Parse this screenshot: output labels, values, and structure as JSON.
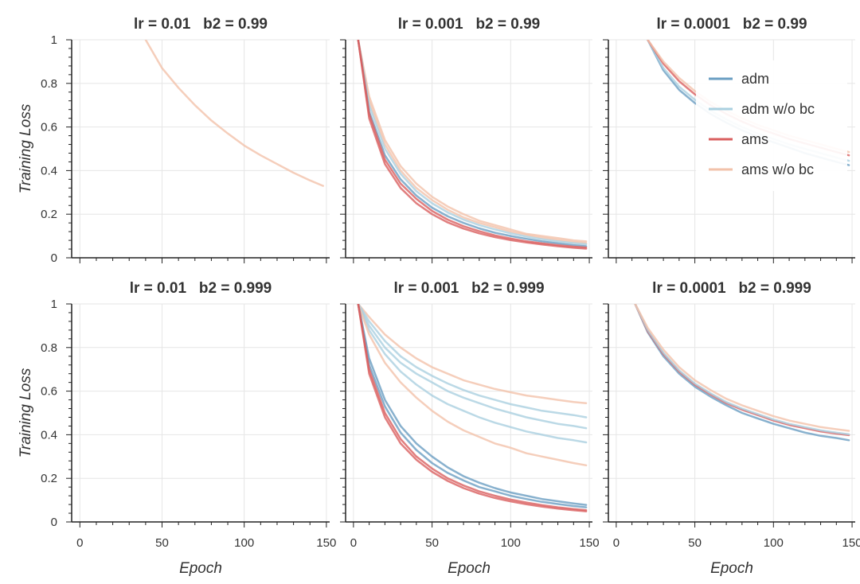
{
  "chart_data": {
    "type": "line",
    "legend": {
      "placement": "top-right",
      "entries": [
        {
          "label": "adm",
          "color": "#6a9ec2",
          "opacity": 1.0
        },
        {
          "label": "adm w/o bc",
          "color": "#aad0e0",
          "opacity": 1.0
        },
        {
          "label": "ams",
          "color": "#d95f5f",
          "opacity": 1.0
        },
        {
          "label": "ams w/o bc",
          "color": "#f2c2aa",
          "opacity": 1.0
        }
      ]
    },
    "axes": {
      "xlabel": "Epoch",
      "ylabel": "Training Loss",
      "xlim": [
        -5,
        152
      ],
      "ylim": [
        0,
        1
      ],
      "xticks": [
        0,
        50,
        100,
        150
      ],
      "yticks": [
        0,
        0.2,
        0.4,
        0.6,
        0.8,
        1
      ],
      "ytick_labels": [
        "0",
        "0.2",
        "0.4",
        "0.6",
        "0.8",
        "1"
      ],
      "grid": true
    },
    "panels": [
      {
        "title": "lr = 0.01   b2 = 0.99",
        "series": [
          {
            "class": "ams w/o bc",
            "x": [
              40,
              50,
              60,
              70,
              80,
              90,
              100,
              110,
              120,
              130,
              140,
              148
            ],
            "y": [
              1.0,
              0.87,
              0.78,
              0.7,
              0.63,
              0.57,
              0.515,
              0.47,
              0.43,
              0.39,
              0.355,
              0.33
            ]
          }
        ]
      },
      {
        "title": "lr = 0.001   b2 = 0.99",
        "series": [
          {
            "class": "ams w/o bc",
            "x": [
              3,
              10,
              20,
              30,
              40,
              50,
              60,
              70,
              80,
              90,
              100,
              110,
              120,
              130,
              140,
              148
            ],
            "y": [
              1.0,
              0.74,
              0.54,
              0.42,
              0.34,
              0.28,
              0.235,
              0.2,
              0.17,
              0.15,
              0.13,
              0.11,
              0.1,
              0.09,
              0.08,
              0.075
            ]
          },
          {
            "class": "ams w/o bc",
            "x": [
              3,
              10,
              20,
              30,
              40,
              50,
              60,
              70,
              80,
              90,
              100,
              110,
              120,
              130,
              140,
              148
            ],
            "y": [
              1.0,
              0.72,
              0.52,
              0.4,
              0.32,
              0.265,
              0.22,
              0.185,
              0.16,
              0.14,
              0.12,
              0.105,
              0.092,
              0.082,
              0.072,
              0.067
            ]
          },
          {
            "class": "adm w/o bc",
            "x": [
              3,
              10,
              20,
              30,
              40,
              50,
              60,
              70,
              80,
              90,
              100,
              110,
              120,
              130,
              140,
              148
            ],
            "y": [
              1.0,
              0.7,
              0.5,
              0.385,
              0.305,
              0.25,
              0.208,
              0.175,
              0.15,
              0.13,
              0.112,
              0.097,
              0.085,
              0.075,
              0.067,
              0.062
            ]
          },
          {
            "class": "adm",
            "x": [
              3,
              10,
              20,
              30,
              40,
              50,
              60,
              70,
              80,
              90,
              100,
              110,
              120,
              130,
              140,
              148
            ],
            "y": [
              1.0,
              0.67,
              0.47,
              0.36,
              0.285,
              0.23,
              0.19,
              0.16,
              0.135,
              0.115,
              0.1,
              0.087,
              0.075,
              0.066,
              0.058,
              0.053
            ]
          },
          {
            "class": "ams",
            "x": [
              3,
              10,
              20,
              30,
              40,
              50,
              60,
              70,
              80,
              90,
              100,
              110,
              120,
              130,
              140,
              148
            ],
            "y": [
              1.0,
              0.66,
              0.45,
              0.34,
              0.27,
              0.215,
              0.175,
              0.145,
              0.122,
              0.103,
              0.088,
              0.076,
              0.066,
              0.058,
              0.051,
              0.047
            ]
          },
          {
            "class": "ams",
            "x": [
              3,
              10,
              20,
              30,
              40,
              50,
              60,
              70,
              80,
              90,
              100,
              110,
              120,
              130,
              140,
              148
            ],
            "y": [
              1.0,
              0.64,
              0.43,
              0.32,
              0.25,
              0.2,
              0.162,
              0.134,
              0.112,
              0.095,
              0.081,
              0.07,
              0.061,
              0.053,
              0.046,
              0.042
            ]
          }
        ]
      },
      {
        "title": "lr = 0.0001   b2 = 0.99",
        "series": [
          {
            "class": "adm",
            "x": [
              20,
              30,
              40,
              50,
              60,
              70,
              80,
              90,
              100,
              110,
              120,
              130,
              140,
              148
            ],
            "y": [
              1.0,
              0.86,
              0.77,
              0.71,
              0.66,
              0.62,
              0.585,
              0.555,
              0.53,
              0.505,
              0.48,
              0.46,
              0.44,
              0.425
            ]
          },
          {
            "class": "adm w/o bc",
            "x": [
              20,
              30,
              40,
              50,
              60,
              70,
              80,
              90,
              100,
              110,
              120,
              130,
              140,
              148
            ],
            "y": [
              1.0,
              0.87,
              0.785,
              0.725,
              0.675,
              0.635,
              0.6,
              0.57,
              0.545,
              0.52,
              0.5,
              0.48,
              0.46,
              0.445
            ]
          },
          {
            "class": "ams",
            "x": [
              20,
              30,
              40,
              50,
              60,
              70,
              80,
              90,
              100,
              110,
              120,
              130,
              140,
              148
            ],
            "y": [
              1.0,
              0.89,
              0.81,
              0.75,
              0.7,
              0.66,
              0.625,
              0.595,
              0.57,
              0.545,
              0.525,
              0.505,
              0.485,
              0.47
            ]
          },
          {
            "class": "ams w/o bc",
            "x": [
              20,
              30,
              40,
              50,
              60,
              70,
              80,
              90,
              100,
              110,
              120,
              130,
              140,
              148
            ],
            "y": [
              1.0,
              0.9,
              0.825,
              0.765,
              0.715,
              0.675,
              0.64,
              0.61,
              0.585,
              0.56,
              0.54,
              0.52,
              0.5,
              0.485
            ]
          }
        ]
      },
      {
        "title": "lr = 0.01   b2 = 0.999",
        "series": []
      },
      {
        "title": "lr = 0.001   b2 = 0.999",
        "series": [
          {
            "class": "ams w/o bc",
            "x": [
              3,
              10,
              20,
              30,
              40,
              50,
              60,
              70,
              80,
              90,
              100,
              110,
              120,
              130,
              140,
              148
            ],
            "y": [
              1.0,
              0.94,
              0.86,
              0.8,
              0.75,
              0.71,
              0.68,
              0.65,
              0.63,
              0.61,
              0.595,
              0.58,
              0.57,
              0.56,
              0.55,
              0.545
            ]
          },
          {
            "class": "adm w/o bc",
            "x": [
              3,
              10,
              20,
              30,
              40,
              50,
              60,
              70,
              80,
              90,
              100,
              110,
              120,
              130,
              140,
              148
            ],
            "y": [
              1.0,
              0.92,
              0.83,
              0.76,
              0.71,
              0.67,
              0.635,
              0.605,
              0.58,
              0.56,
              0.54,
              0.525,
              0.51,
              0.5,
              0.49,
              0.48
            ]
          },
          {
            "class": "adm w/o bc",
            "x": [
              3,
              10,
              20,
              30,
              40,
              50,
              60,
              70,
              80,
              90,
              100,
              110,
              120,
              130,
              140,
              148
            ],
            "y": [
              1.0,
              0.9,
              0.8,
              0.73,
              0.68,
              0.64,
              0.6,
              0.57,
              0.545,
              0.52,
              0.5,
              0.48,
              0.465,
              0.45,
              0.44,
              0.43
            ]
          },
          {
            "class": "adm w/o bc",
            "x": [
              3,
              10,
              20,
              30,
              40,
              50,
              60,
              70,
              80,
              90,
              100,
              110,
              120,
              130,
              140,
              148
            ],
            "y": [
              1.0,
              0.88,
              0.77,
              0.69,
              0.63,
              0.58,
              0.54,
              0.51,
              0.48,
              0.455,
              0.435,
              0.415,
              0.4,
              0.385,
              0.375,
              0.365
            ]
          },
          {
            "class": "ams w/o bc",
            "x": [
              3,
              10,
              20,
              30,
              40,
              50,
              60,
              70,
              80,
              90,
              100,
              110,
              120,
              130,
              140,
              148
            ],
            "y": [
              1.0,
              0.86,
              0.73,
              0.64,
              0.57,
              0.51,
              0.46,
              0.42,
              0.39,
              0.36,
              0.34,
              0.315,
              0.3,
              0.285,
              0.27,
              0.26
            ]
          },
          {
            "class": "adm",
            "x": [
              3,
              10,
              20,
              30,
              40,
              50,
              60,
              70,
              80,
              90,
              100,
              110,
              120,
              130,
              140,
              148
            ],
            "y": [
              1.0,
              0.75,
              0.56,
              0.44,
              0.36,
              0.3,
              0.25,
              0.21,
              0.18,
              0.155,
              0.135,
              0.12,
              0.105,
              0.095,
              0.085,
              0.078
            ]
          },
          {
            "class": "adm",
            "x": [
              3,
              10,
              20,
              30,
              40,
              50,
              60,
              70,
              80,
              90,
              100,
              110,
              120,
              130,
              140,
              148
            ],
            "y": [
              1.0,
              0.72,
              0.53,
              0.41,
              0.33,
              0.27,
              0.225,
              0.19,
              0.16,
              0.14,
              0.12,
              0.105,
              0.092,
              0.082,
              0.073,
              0.067
            ]
          },
          {
            "class": "ams",
            "x": [
              3,
              10,
              20,
              30,
              40,
              50,
              60,
              70,
              80,
              90,
              100,
              110,
              120,
              130,
              140,
              148
            ],
            "y": [
              1.0,
              0.7,
              0.5,
              0.38,
              0.3,
              0.245,
              0.2,
              0.167,
              0.14,
              0.12,
              0.103,
              0.089,
              0.077,
              0.067,
              0.059,
              0.054
            ]
          },
          {
            "class": "ams",
            "x": [
              3,
              10,
              20,
              30,
              40,
              50,
              60,
              70,
              80,
              90,
              100,
              110,
              120,
              130,
              140,
              148
            ],
            "y": [
              1.0,
              0.68,
              0.48,
              0.36,
              0.285,
              0.23,
              0.188,
              0.155,
              0.13,
              0.11,
              0.094,
              0.081,
              0.07,
              0.061,
              0.054,
              0.049
            ]
          }
        ]
      },
      {
        "title": "lr = 0.0001   b2 = 0.999",
        "series": [
          {
            "class": "adm",
            "x": [
              12,
              20,
              30,
              40,
              50,
              60,
              70,
              80,
              90,
              100,
              110,
              120,
              130,
              140,
              148
            ],
            "y": [
              1.0,
              0.87,
              0.76,
              0.68,
              0.62,
              0.575,
              0.535,
              0.5,
              0.475,
              0.45,
              0.43,
              0.41,
              0.395,
              0.385,
              0.375
            ]
          },
          {
            "class": "ams",
            "x": [
              12,
              20,
              30,
              40,
              50,
              60,
              70,
              80,
              90,
              100,
              110,
              120,
              130,
              140,
              148
            ],
            "y": [
              1.0,
              0.875,
              0.77,
              0.69,
              0.63,
              0.585,
              0.545,
              0.515,
              0.49,
              0.465,
              0.445,
              0.43,
              0.415,
              0.405,
              0.398
            ]
          },
          {
            "class": "adm w/o bc",
            "x": [
              12,
              20,
              30,
              40,
              50,
              60,
              70,
              80,
              90,
              100,
              110,
              120,
              130,
              140,
              148
            ],
            "y": [
              1.0,
              0.88,
              0.775,
              0.695,
              0.635,
              0.59,
              0.55,
              0.52,
              0.495,
              0.47,
              0.45,
              0.435,
              0.42,
              0.41,
              0.402
            ]
          },
          {
            "class": "ams w/o bc",
            "x": [
              12,
              20,
              30,
              40,
              50,
              60,
              70,
              80,
              90,
              100,
              110,
              120,
              130,
              140,
              148
            ],
            "y": [
              1.0,
              0.89,
              0.79,
              0.71,
              0.65,
              0.605,
              0.565,
              0.535,
              0.51,
              0.485,
              0.465,
              0.45,
              0.435,
              0.425,
              0.418
            ]
          }
        ]
      }
    ]
  }
}
